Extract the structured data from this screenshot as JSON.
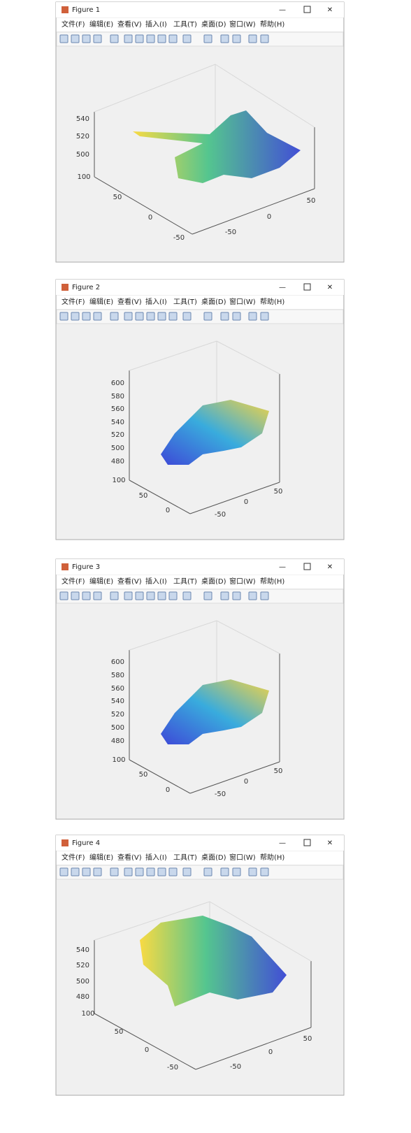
{
  "windows": [
    {
      "title": "Figure 1",
      "menu": [
        "文件(F)",
        "编辑(E)",
        "查看(V)",
        "插入(I)",
        "工具(T)",
        "桌面(D)",
        "窗口(W)",
        "帮助(H)"
      ],
      "z_ticks": [
        540,
        520,
        500
      ],
      "y_ticks": [
        100,
        50,
        0,
        -50
      ],
      "x_ticks": [
        -50,
        0,
        50
      ]
    },
    {
      "title": "Figure 2",
      "menu": [
        "文件(F)",
        "编辑(E)",
        "查看(V)",
        "插入(I)",
        "工具(T)",
        "桌面(D)",
        "窗口(W)",
        "帮助(H)"
      ],
      "z_ticks": [
        600,
        580,
        560,
        540,
        520,
        500,
        480
      ],
      "y_ticks": [
        100,
        50,
        0
      ],
      "x_ticks": [
        -50,
        0,
        50
      ]
    },
    {
      "title": "Figure 3",
      "menu": [
        "文件(F)",
        "编辑(E)",
        "查看(V)",
        "插入(I)",
        "工具(T)",
        "桌面(D)",
        "窗口(W)",
        "帮助(H)"
      ],
      "z_ticks": [
        600,
        580,
        560,
        540,
        520,
        500,
        480
      ],
      "y_ticks": [
        100,
        50,
        0
      ],
      "x_ticks": [
        -50,
        0,
        50
      ]
    },
    {
      "title": "Figure 4",
      "menu": [
        "文件(F)",
        "编辑(E)",
        "查看(V)",
        "插入(I)",
        "工具(T)",
        "桌面(D)",
        "窗口(W)",
        "帮助(H)"
      ],
      "z_ticks": [
        540,
        520,
        500,
        480
      ],
      "y_ticks": [
        100,
        50,
        0,
        -50
      ],
      "x_ticks": [
        -50,
        0,
        50
      ]
    }
  ]
}
